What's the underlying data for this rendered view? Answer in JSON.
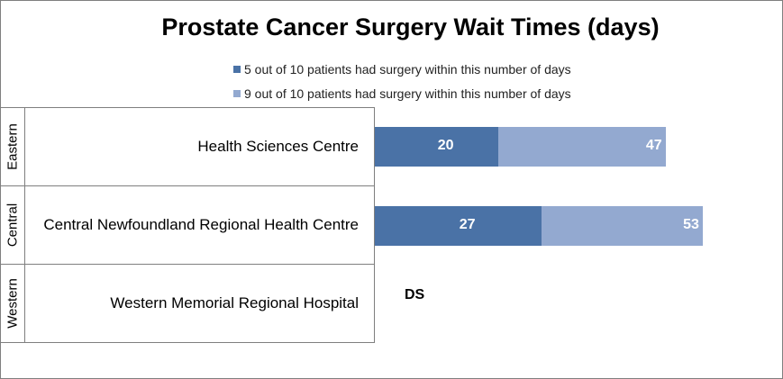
{
  "chart_data": {
    "type": "bar",
    "orientation": "horizontal",
    "title": "Prostate Cancer Surgery Wait Times (days)",
    "legend_position": "top",
    "groups": [
      "Eastern",
      "Central",
      "Western"
    ],
    "categories": [
      "Health Sciences Centre",
      "Central Newfoundland Regional Health Centre",
      "Western Memorial Regional Hospital"
    ],
    "series": [
      {
        "name": "5 out of 10 patients had surgery within this number of days",
        "color": "#4a72a6",
        "values": [
          20,
          27,
          null
        ]
      },
      {
        "name": "9 out of 10 patients had surgery within this number of days",
        "color": "#93a9d0",
        "values": [
          47,
          53,
          null
        ]
      }
    ],
    "annotations": [
      "",
      "",
      "DS"
    ],
    "grid": false
  }
}
